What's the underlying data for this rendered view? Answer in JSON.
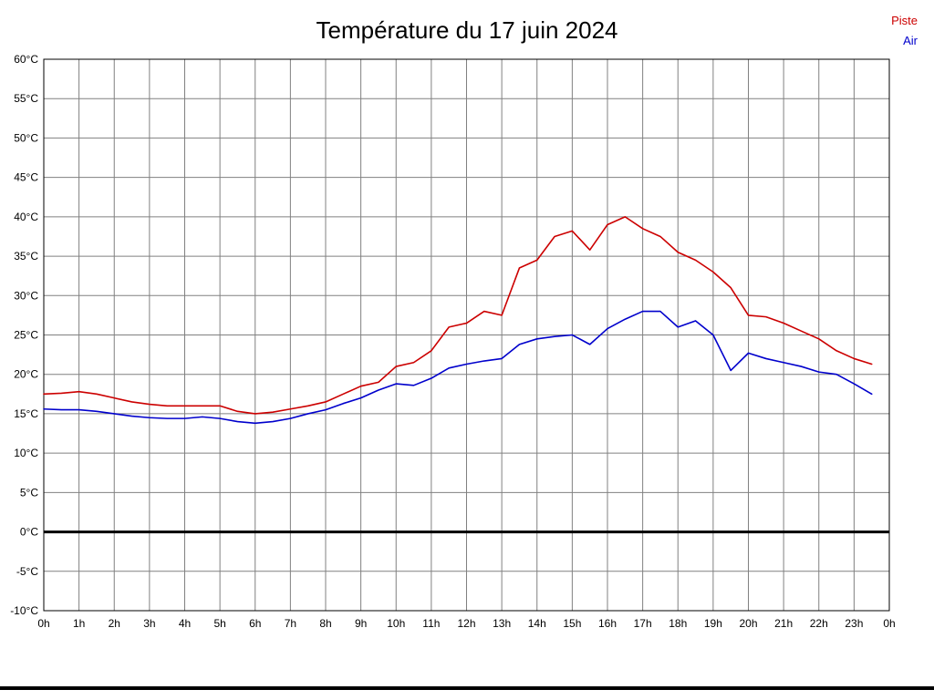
{
  "title": "Température du 17 juin 2024",
  "legend": {
    "piste_label": "Piste",
    "air_label": "Air"
  },
  "colors": {
    "piste": "#cc0000",
    "air": "#0000cc",
    "grid": "#808080",
    "axis": "#000000",
    "zero_line": "#000000",
    "text": "#000000"
  },
  "chart_data": {
    "type": "line",
    "title": "Température du 17 juin 2024",
    "xlabel": "",
    "ylabel": "",
    "xlim": [
      0,
      24
    ],
    "ylim": [
      -10,
      60
    ],
    "grid": true,
    "zero_line_at": 0,
    "legend_position": "top-right",
    "x_tick_positions": [
      0,
      1,
      2,
      3,
      4,
      5,
      6,
      7,
      8,
      9,
      10,
      11,
      12,
      13,
      14,
      15,
      16,
      17,
      18,
      19,
      20,
      21,
      22,
      23,
      24
    ],
    "x_tick_labels": [
      "0h",
      "1h",
      "2h",
      "3h",
      "4h",
      "5h",
      "6h",
      "7h",
      "8h",
      "9h",
      "10h",
      "11h",
      "12h",
      "13h",
      "14h",
      "15h",
      "16h",
      "17h",
      "18h",
      "19h",
      "20h",
      "21h",
      "22h",
      "23h",
      "0h"
    ],
    "y_tick_positions": [
      60,
      55,
      50,
      45,
      40,
      35,
      30,
      25,
      20,
      15,
      10,
      5,
      0,
      -5,
      -10
    ],
    "y_tick_labels": [
      "60°C",
      "55°C",
      "50°C",
      "45°C",
      "40°C",
      "35°C",
      "30°C",
      "25°C",
      "20°C",
      "15°C",
      "10°C",
      "5°C",
      "0°C",
      "-5°C",
      "-10°C"
    ],
    "x": [
      0,
      0.5,
      1,
      1.5,
      2,
      2.5,
      3,
      3.5,
      4,
      4.5,
      5,
      5.5,
      6,
      6.5,
      7,
      7.5,
      8,
      8.5,
      9,
      9.5,
      10,
      10.5,
      11,
      11.5,
      12,
      12.5,
      13,
      13.5,
      14,
      14.5,
      15,
      15.5,
      16,
      16.5,
      17,
      17.5,
      18,
      18.5,
      19,
      19.5,
      20,
      20.5,
      21,
      21.5,
      22,
      22.5,
      23,
      23.5
    ],
    "series": [
      {
        "name": "Piste",
        "color": "#cc0000",
        "values": [
          17.5,
          17.6,
          17.8,
          17.5,
          17.0,
          16.5,
          16.2,
          16.0,
          16.0,
          16.0,
          16.0,
          15.3,
          15.0,
          15.2,
          15.6,
          16.0,
          16.5,
          17.5,
          18.5,
          19.0,
          21.0,
          21.5,
          23.0,
          26.0,
          26.5,
          28.0,
          27.5,
          33.5,
          34.5,
          37.5,
          38.2,
          35.8,
          39.0,
          40.0,
          38.5,
          37.5,
          35.5,
          34.5,
          33.0,
          31.0,
          27.5,
          27.3,
          26.5,
          25.5,
          24.5,
          23.0,
          22.0,
          21.3
        ]
      },
      {
        "name": "Air",
        "color": "#0000cc",
        "values": [
          15.6,
          15.5,
          15.5,
          15.3,
          15.0,
          14.7,
          14.5,
          14.4,
          14.4,
          14.6,
          14.4,
          14.0,
          13.8,
          14.0,
          14.4,
          15.0,
          15.5,
          16.3,
          17.0,
          18.0,
          18.8,
          18.6,
          19.5,
          20.8,
          21.3,
          21.7,
          22.0,
          23.8,
          24.5,
          24.8,
          25.0,
          23.8,
          25.8,
          27.0,
          28.0,
          28.0,
          26.0,
          26.8,
          25.0,
          20.5,
          22.7,
          22.0,
          21.5,
          21.0,
          20.3,
          20.0,
          18.8,
          17.5
        ]
      }
    ]
  }
}
